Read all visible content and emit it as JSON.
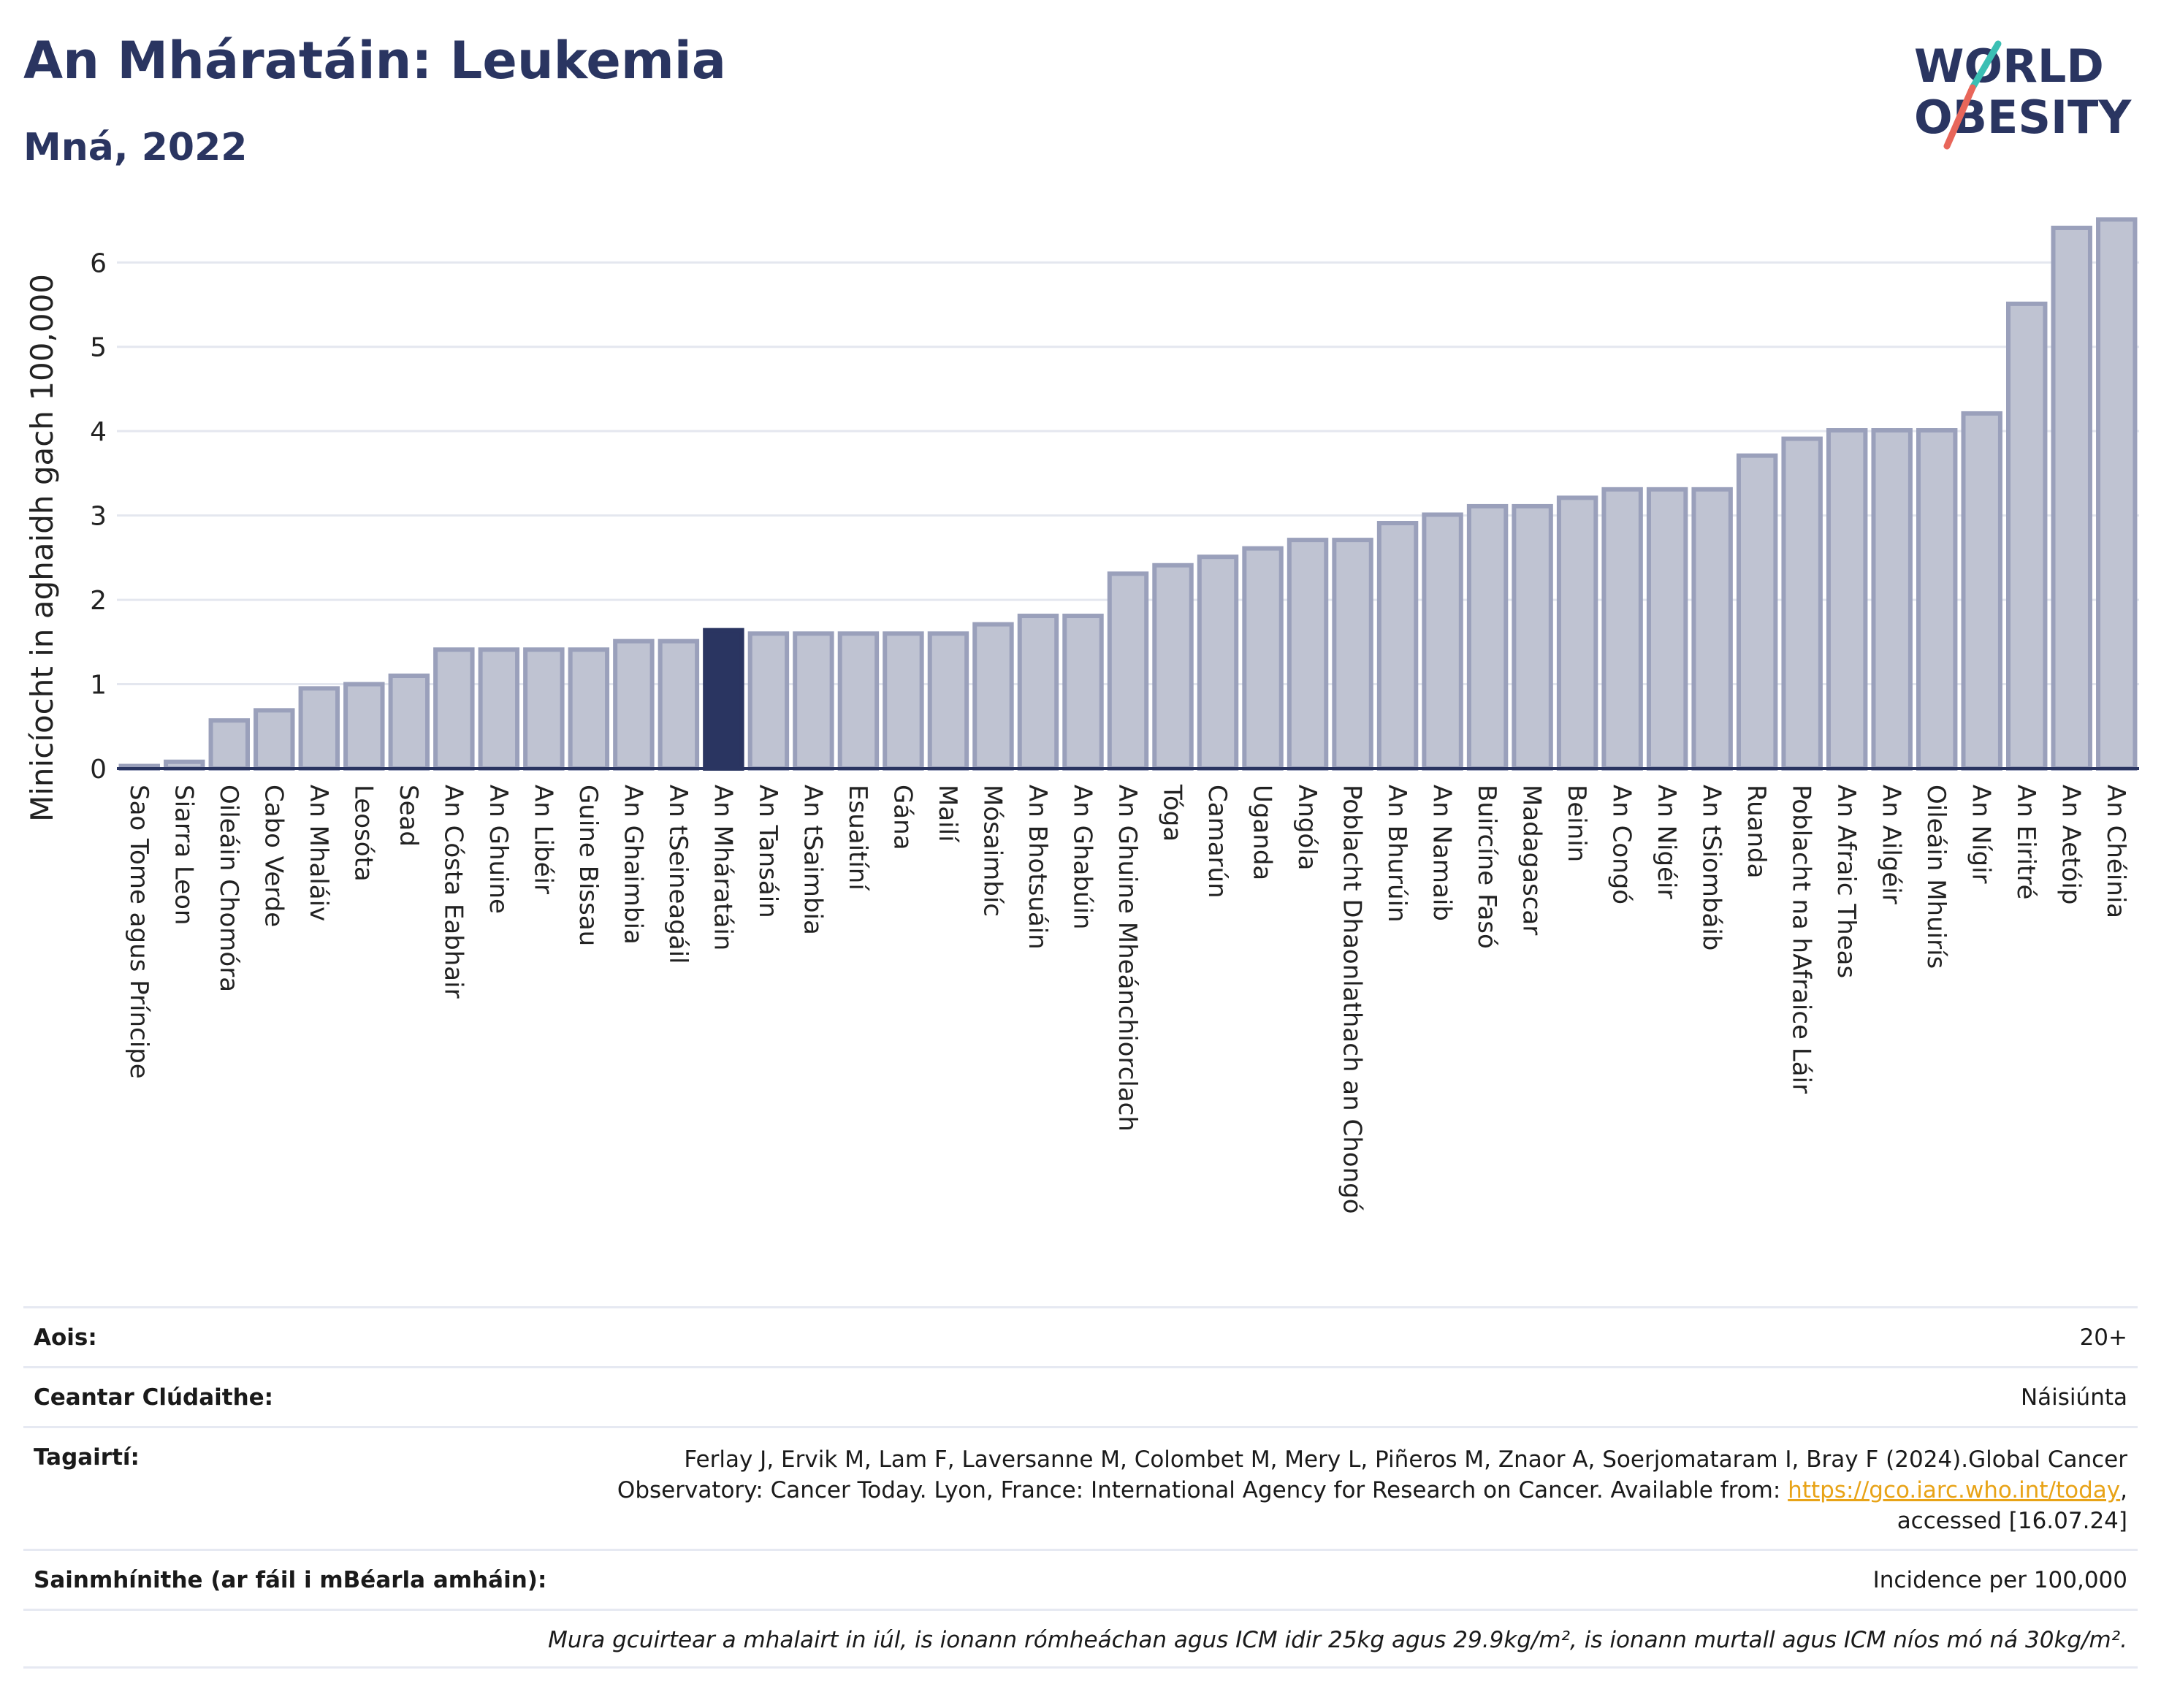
{
  "header": {
    "title": "An Mháratáin: Leukemia",
    "subtitle": "Mná, 2022",
    "logo_line1": "WORLD",
    "logo_line2": "OBESITY"
  },
  "colors": {
    "bar": "#bfc3d2",
    "bar_border": "#9aa0bb",
    "highlight": "#2a3561",
    "accent_teal": "#3bbfb4",
    "accent_red": "#e8665a"
  },
  "chart_data": {
    "type": "bar",
    "ylabel": "Minicíocht in aghaidh gach 100,000",
    "xlabel": "",
    "ylim": [
      0,
      6.6
    ],
    "yticks": [
      0,
      1,
      2,
      3,
      4,
      5,
      6
    ],
    "grid": true,
    "highlight": "An Mháratáin",
    "categories": [
      "Sao Tome agus Príncipe",
      "Siarra Leon",
      "Oileáin Chomóra",
      "Cabo Verde",
      "An Mhaláiv",
      "Leosóta",
      "Sead",
      "An Cósta Eabhair",
      "An Ghuine",
      "An Libéir",
      "Guine Bissau",
      "An Ghaimbia",
      "An tSeineagáil",
      "An Mháratáin",
      "An Tansáin",
      "An tSaimbia",
      "Esuaitíní",
      "Gána",
      "Mailí",
      "Mósaimbíc",
      "An Bhotsuáin",
      "An Ghabúin",
      "An Ghuine Mheánchiorclach",
      "Tóga",
      "Camarún",
      "Uganda",
      "Angóla",
      "Poblacht Dhaonlathach an Chongó",
      "An Bhurúin",
      "An Namaib",
      "Buircíne Fasó",
      "Madagascar",
      "Beinin",
      "An Congó",
      "An Nigéir",
      "An tSiombáib",
      "Ruanda",
      "Poblacht na hAfraice Láir",
      "An Afraic Theas",
      "An Ailgéir",
      "Oileáin Mhuirís",
      "An Nígir",
      "An Eiritré",
      "An Aetóip",
      "An Chéinia"
    ],
    "values": [
      0.03,
      0.08,
      0.57,
      0.69,
      0.95,
      1.0,
      1.1,
      1.41,
      1.41,
      1.41,
      1.41,
      1.51,
      1.51,
      1.64,
      1.6,
      1.6,
      1.6,
      1.6,
      1.6,
      1.71,
      1.81,
      1.81,
      2.31,
      2.41,
      2.51,
      2.61,
      2.71,
      2.71,
      2.91,
      3.01,
      3.11,
      3.11,
      3.21,
      3.31,
      3.31,
      3.31,
      3.71,
      3.91,
      4.01,
      4.01,
      4.01,
      4.21,
      5.51,
      6.41,
      6.51
    ]
  },
  "info": {
    "rows": [
      {
        "label": "Aois:",
        "value": "20+"
      },
      {
        "label": "Ceantar Clúdaithe:",
        "value": "Náisiúnta"
      }
    ],
    "ref_label": "Tagairtí:",
    "ref_line1": "Ferlay J, Ervik M, Lam F, Laversanne M, Colombet M, Mery L, Piñeros M, Znaor A, Soerjomataram I, Bray F (2024).Global Cancer",
    "ref_line2_pre": "Observatory: Cancer Today. Lyon, France: International Agency for Research on Cancer. Available from: ",
    "ref_link": "https://gco.iarc.who.int/today",
    "ref_line2_post": ",",
    "ref_line3": "accessed [16.07.24]",
    "def_label": "Sainmhínithe (ar fáil i mBéarla amháin):",
    "def_value": "Incidence per 100,000",
    "note": "Mura gcuirtear a mhalairt in iúl, is ionann rómheáchan agus ICM idir 25kg agus 29.9kg/m², is ionann murtall agus ICM níos mó ná 30kg/m²."
  }
}
